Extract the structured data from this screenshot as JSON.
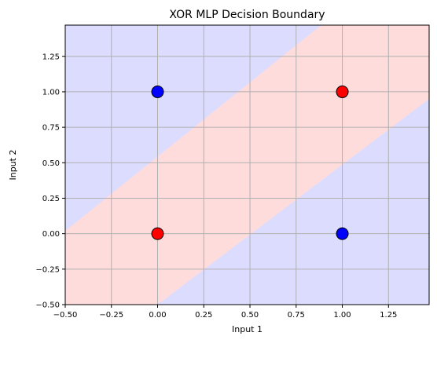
{
  "chart_data": {
    "type": "scatter",
    "title": "XOR MLP Decision Boundary",
    "xlabel": "Input 1",
    "ylabel": "Input 2",
    "xlim": [
      -0.5,
      1.47
    ],
    "ylim": [
      -0.5,
      1.47
    ],
    "grid": true,
    "x_ticks": [
      -0.5,
      -0.25,
      0.0,
      0.25,
      0.5,
      0.75,
      1.0,
      1.25
    ],
    "x_tick_labels": [
      "−0.50",
      "−0.25",
      "0.00",
      "0.25",
      "0.50",
      "0.75",
      "1.00",
      "1.25"
    ],
    "y_ticks": [
      -0.5,
      -0.25,
      0.0,
      0.25,
      0.5,
      0.75,
      1.0,
      1.25
    ],
    "y_tick_labels": [
      "−0.50",
      "−0.25",
      "0.00",
      "0.25",
      "0.50",
      "0.75",
      "1.00",
      "1.25"
    ],
    "points": [
      {
        "x": 0,
        "y": 0,
        "class": 1,
        "color": "#ff0000"
      },
      {
        "x": 0,
        "y": 1,
        "class": 0,
        "color": "#0000ff"
      },
      {
        "x": 1,
        "y": 0,
        "class": 0,
        "color": "#0000ff"
      },
      {
        "x": 1,
        "y": 1,
        "class": 1,
        "color": "#ff0000"
      }
    ],
    "decision_regions": {
      "class0_color": "#dcdcff",
      "class1_color": "#ffdcdc",
      "class1_band": {
        "upper_boundary": [
          [
            -0.5,
            0.02
          ],
          [
            1.0,
            1.59
          ]
        ],
        "lower_boundary": [
          [
            0.0,
            -0.5
          ],
          [
            1.47,
            0.95
          ]
        ]
      }
    }
  }
}
